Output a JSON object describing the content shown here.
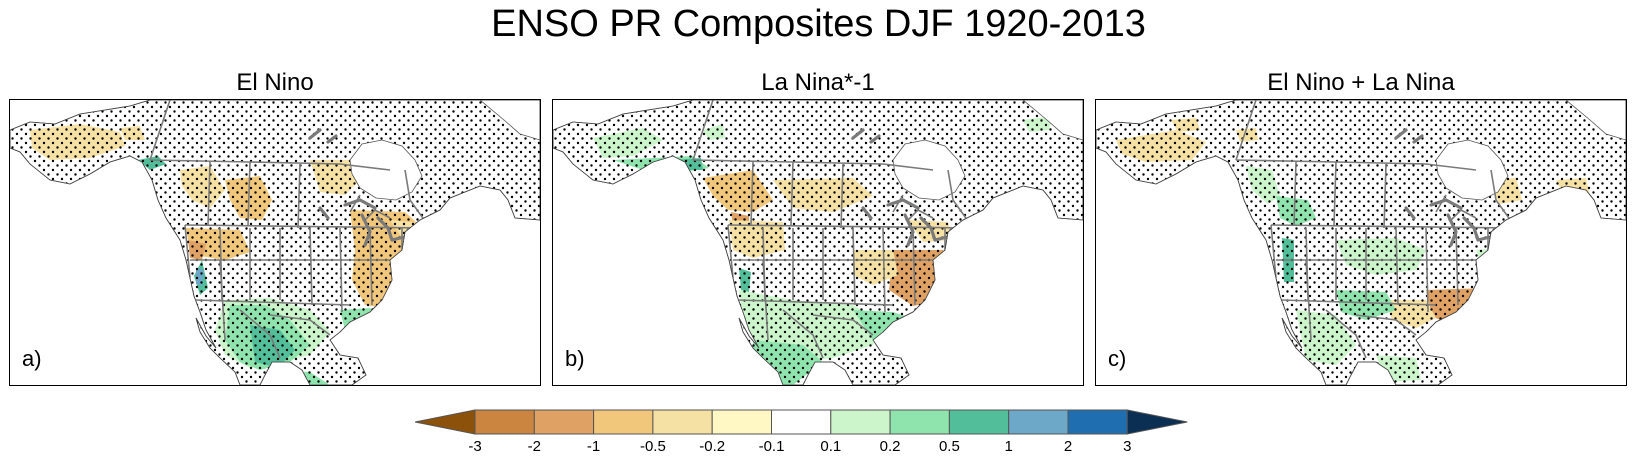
{
  "title": "ENSO PR Composites DJF 1920-2013",
  "panels": [
    {
      "title": "El Nino",
      "label": "a)"
    },
    {
      "title": "La Nina*-1",
      "label": "b)"
    },
    {
      "title": "El Nino + La Nina",
      "label": "c)"
    }
  ],
  "colorbar": {
    "ticks": [
      "-3",
      "-2",
      "-1",
      "-0.5",
      "-0.2",
      "-0.1",
      "0.1",
      "0.2",
      "0.5",
      "1",
      "2",
      "3"
    ],
    "colors": [
      "#8c510a",
      "#cc8540",
      "#dfa264",
      "#f1c77b",
      "#f5e1a4",
      "#fff7c4",
      "#ffffff",
      "#ccf5cc",
      "#8fe3ad",
      "#52bf9a",
      "#6da8c8",
      "#1f6fb0",
      "#0a2f52"
    ]
  },
  "map_style": {
    "land_color": "#ffffff",
    "boundary_color": "#7a7a7a",
    "stipple_color": "#000000",
    "overlay_colors": {
      "brown": "#f1c77b",
      "tan": "#f5e1a4",
      "lightgreen": "#ccf5cc",
      "green": "#8fe3ad",
      "teal": "#52bf9a",
      "blue": "#6da8c8",
      "orange": "#dfa264"
    }
  }
}
